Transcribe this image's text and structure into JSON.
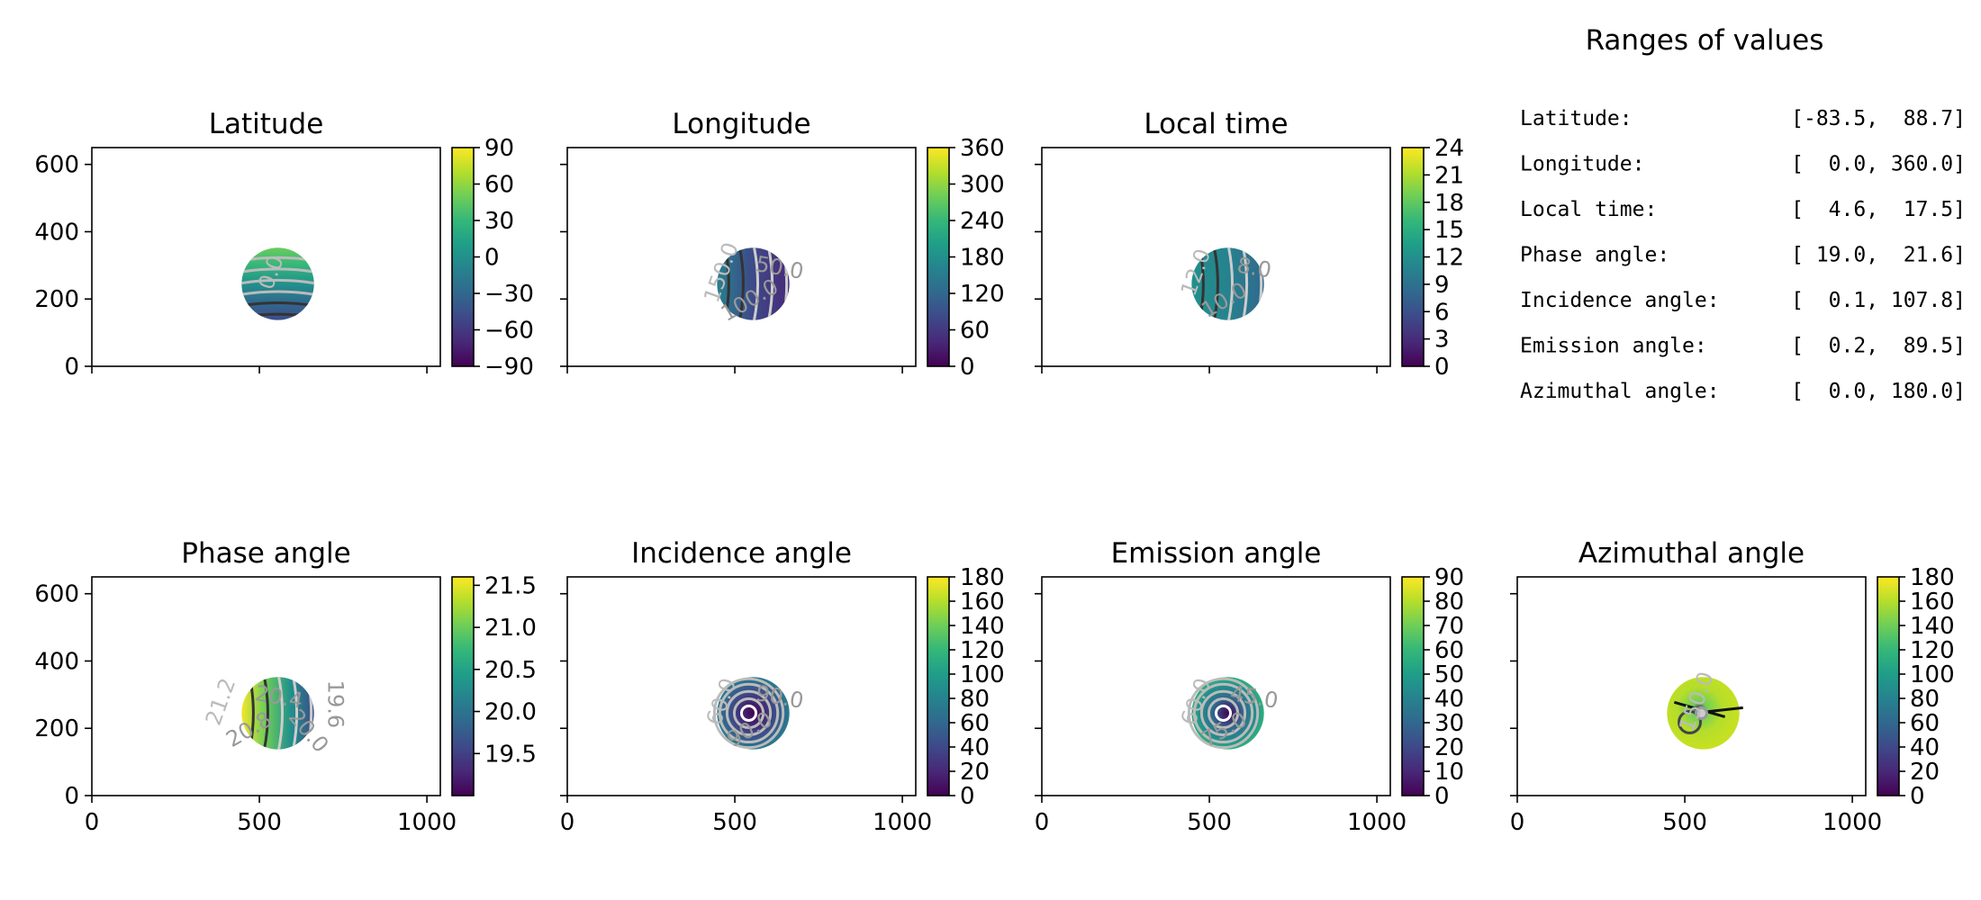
{
  "ranges": {
    "title": "Ranges of values",
    "rows": [
      {
        "label": "Latitude:",
        "value": "[-83.5,  88.7]"
      },
      {
        "label": "Longitude:",
        "value": "[  0.0, 360.0]"
      },
      {
        "label": "Local time:",
        "value": "[  4.6,  17.5]"
      },
      {
        "label": "Phase angle:",
        "value": "[ 19.0,  21.6]"
      },
      {
        "label": "Incidence angle:",
        "value": "[  0.1, 107.8]"
      },
      {
        "label": "Emission angle:",
        "value": "[  0.2,  89.5]"
      },
      {
        "label": "Azimuthal angle:",
        "value": "[  0.0, 180.0]"
      }
    ]
  },
  "colormap": [
    "#440154",
    "#482878",
    "#3e4989",
    "#31688e",
    "#26828e",
    "#1f9e89",
    "#35b779",
    "#6ece58",
    "#b5de2b",
    "#fde725"
  ],
  "chart_data": [
    {
      "type": "heatmap",
      "title": "Latitude",
      "xlim": [
        0,
        1040
      ],
      "ylim": [
        0,
        650
      ],
      "xticks": [
        0,
        500,
        1000
      ],
      "yticks": [
        0,
        200,
        400,
        600
      ],
      "show_x_tick_labels": false,
      "show_y_tick_labels": true,
      "disk": {
        "cx": 555,
        "cy": 245,
        "r": 108
      },
      "colorbar": {
        "min": -90,
        "max": 90,
        "ticks": [
          {
            "v": 90,
            "t": "90"
          },
          {
            "v": 60,
            "t": "60"
          },
          {
            "v": 30,
            "t": "30"
          },
          {
            "v": 0,
            "t": "0"
          },
          {
            "v": -30,
            "t": "−30"
          },
          {
            "v": -60,
            "t": "−60"
          },
          {
            "v": -90,
            "t": "−90"
          }
        ]
      },
      "contour_labels": [
        "0.0"
      ],
      "value_range": [
        -83.5,
        88.7
      ],
      "pattern": "bands-vertical"
    },
    {
      "type": "heatmap",
      "title": "Longitude",
      "xlim": [
        0,
        1040
      ],
      "ylim": [
        0,
        650
      ],
      "xticks": [
        0,
        500,
        1000
      ],
      "yticks": [
        0,
        200,
        400,
        600
      ],
      "show_x_tick_labels": false,
      "show_y_tick_labels": false,
      "disk": {
        "cx": 555,
        "cy": 245,
        "r": 108
      },
      "colorbar": {
        "min": 0,
        "max": 360,
        "ticks": [
          {
            "v": 360,
            "t": "360"
          },
          {
            "v": 300,
            "t": "300"
          },
          {
            "v": 240,
            "t": "240"
          },
          {
            "v": 180,
            "t": "180"
          },
          {
            "v": 120,
            "t": "120"
          },
          {
            "v": 60,
            "t": "60"
          },
          {
            "v": 0,
            "t": "0"
          }
        ]
      },
      "contour_labels": [
        "150.0",
        "100.0",
        "50.0"
      ],
      "value_range": [
        0,
        360
      ],
      "pattern": "bands-horizontal"
    },
    {
      "type": "heatmap",
      "title": "Local time",
      "xlim": [
        0,
        1040
      ],
      "ylim": [
        0,
        650
      ],
      "xticks": [
        0,
        500,
        1000
      ],
      "yticks": [
        0,
        200,
        400,
        600
      ],
      "show_x_tick_labels": false,
      "show_y_tick_labels": false,
      "disk": {
        "cx": 555,
        "cy": 245,
        "r": 108
      },
      "colorbar": {
        "min": 0,
        "max": 24,
        "ticks": [
          {
            "v": 24,
            "t": "24"
          },
          {
            "v": 21,
            "t": "21"
          },
          {
            "v": 18,
            "t": "18"
          },
          {
            "v": 15,
            "t": "15"
          },
          {
            "v": 12,
            "t": "12"
          },
          {
            "v": 9,
            "t": "9"
          },
          {
            "v": 6,
            "t": "6"
          },
          {
            "v": 3,
            "t": "3"
          },
          {
            "v": 0,
            "t": "0"
          }
        ]
      },
      "contour_labels": [
        "12.0",
        "10.0",
        "8.0"
      ],
      "value_range": [
        4.6,
        17.5
      ],
      "pattern": "bands-horizontal"
    },
    {
      "type": "heatmap",
      "title": "Phase angle",
      "xlim": [
        0,
        1040
      ],
      "ylim": [
        0,
        650
      ],
      "xticks": [
        0,
        500,
        1000
      ],
      "yticks": [
        0,
        200,
        400,
        600
      ],
      "show_x_tick_labels": true,
      "show_y_tick_labels": true,
      "disk": {
        "cx": 555,
        "cy": 245,
        "r": 108
      },
      "colorbar": {
        "min": 19.0,
        "max": 21.6,
        "ticks": [
          {
            "v": 21.5,
            "t": "21.5"
          },
          {
            "v": 21.0,
            "t": "21.0"
          },
          {
            "v": 20.5,
            "t": "20.5"
          },
          {
            "v": 20.0,
            "t": "20.0"
          },
          {
            "v": 19.5,
            "t": "19.5"
          }
        ]
      },
      "contour_labels": [
        "21.2",
        "20.8",
        "20.4",
        "20.0",
        "19.6"
      ],
      "value_range": [
        19.0,
        21.6
      ],
      "pattern": "bands-horizontal-rev"
    },
    {
      "type": "heatmap",
      "title": "Incidence angle",
      "xlim": [
        0,
        1040
      ],
      "ylim": [
        0,
        650
      ],
      "xticks": [
        0,
        500,
        1000
      ],
      "yticks": [
        0,
        200,
        400,
        600
      ],
      "show_x_tick_labels": true,
      "show_y_tick_labels": false,
      "disk": {
        "cx": 555,
        "cy": 245,
        "r": 108
      },
      "colorbar": {
        "min": 0,
        "max": 180,
        "ticks": [
          {
            "v": 180,
            "t": "180"
          },
          {
            "v": 160,
            "t": "160"
          },
          {
            "v": 140,
            "t": "140"
          },
          {
            "v": 120,
            "t": "120"
          },
          {
            "v": 100,
            "t": "100"
          },
          {
            "v": 80,
            "t": "80"
          },
          {
            "v": 60,
            "t": "60"
          },
          {
            "v": 40,
            "t": "40"
          },
          {
            "v": 20,
            "t": "20"
          },
          {
            "v": 0,
            "t": "0"
          }
        ]
      },
      "contour_labels": [
        "60.0",
        "90.0",
        "90.0"
      ],
      "value_range": [
        0.1,
        107.8
      ],
      "pattern": "rings"
    },
    {
      "type": "heatmap",
      "title": "Emission angle",
      "xlim": [
        0,
        1040
      ],
      "ylim": [
        0,
        650
      ],
      "xticks": [
        0,
        500,
        1000
      ],
      "yticks": [
        0,
        200,
        400,
        600
      ],
      "show_x_tick_labels": true,
      "show_y_tick_labels": false,
      "disk": {
        "cx": 555,
        "cy": 245,
        "r": 108
      },
      "colorbar": {
        "min": 0,
        "max": 90,
        "ticks": [
          {
            "v": 90,
            "t": "90"
          },
          {
            "v": 80,
            "t": "80"
          },
          {
            "v": 70,
            "t": "70"
          },
          {
            "v": 60,
            "t": "60"
          },
          {
            "v": 50,
            "t": "50"
          },
          {
            "v": 40,
            "t": "40"
          },
          {
            "v": 30,
            "t": "30"
          },
          {
            "v": 20,
            "t": "20"
          },
          {
            "v": 10,
            "t": "10"
          },
          {
            "v": 0,
            "t": "0"
          }
        ]
      },
      "contour_labels": [
        "60.0",
        "75.0",
        "45.0"
      ],
      "value_range": [
        0.2,
        89.5
      ],
      "pattern": "rings-edge"
    },
    {
      "type": "heatmap",
      "title": "Azimuthal angle",
      "xlim": [
        0,
        1040
      ],
      "ylim": [
        0,
        650
      ],
      "xticks": [
        0,
        500,
        1000
      ],
      "yticks": [
        0,
        200,
        400,
        600
      ],
      "show_x_tick_labels": true,
      "show_y_tick_labels": false,
      "disk": {
        "cx": 555,
        "cy": 245,
        "r": 108
      },
      "colorbar": {
        "min": 0,
        "max": 180,
        "ticks": [
          {
            "v": 180,
            "t": "180"
          },
          {
            "v": 160,
            "t": "160"
          },
          {
            "v": 140,
            "t": "140"
          },
          {
            "v": 120,
            "t": "120"
          },
          {
            "v": 100,
            "t": "100"
          },
          {
            "v": 80,
            "t": "80"
          },
          {
            "v": 60,
            "t": "60"
          },
          {
            "v": 40,
            "t": "40"
          },
          {
            "v": 20,
            "t": "20"
          },
          {
            "v": 0,
            "t": "0"
          }
        ]
      },
      "contour_labels": [
        "150.0"
      ],
      "value_range": [
        0,
        180
      ],
      "pattern": "azimuth"
    }
  ]
}
